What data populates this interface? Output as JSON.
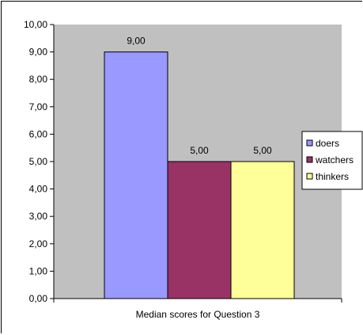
{
  "chart_data": {
    "type": "bar",
    "categories": [
      "Median scores for Question 3"
    ],
    "series": [
      {
        "name": "doers",
        "values": [
          9.0
        ],
        "color": "#9999FF",
        "label": "9,00"
      },
      {
        "name": "watchers",
        "values": [
          5.0
        ],
        "color": "#993366",
        "label": "5,00"
      },
      {
        "name": "thinkers",
        "values": [
          5.0
        ],
        "color": "#FFFF99",
        "label": "5,00"
      }
    ],
    "ylim": [
      0,
      10
    ],
    "yticks": [
      "0,00",
      "1,00",
      "2,00",
      "3,00",
      "4,00",
      "5,00",
      "6,00",
      "7,00",
      "8,00",
      "9,00",
      "10,00"
    ],
    "plot_background": "#C0C0C0",
    "grid": false,
    "legend_position": "right"
  }
}
